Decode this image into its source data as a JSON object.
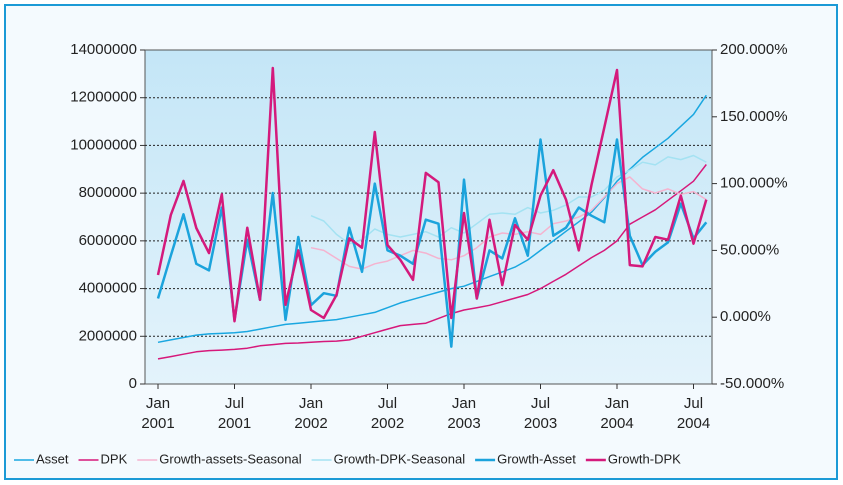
{
  "chart_data": {
    "type": "line",
    "categories": [
      "Jan 2001",
      null,
      null,
      null,
      null,
      null,
      "Jul 2001",
      null,
      null,
      null,
      null,
      null,
      "Jan 2002",
      null,
      null,
      null,
      null,
      null,
      "Jul 2002",
      null,
      null,
      null,
      null,
      null,
      "Jan 2003",
      null,
      null,
      null,
      null,
      null,
      "Jul 2003",
      null,
      null,
      null,
      null,
      null,
      "Jan 2004",
      null,
      null,
      null,
      null,
      null,
      "Jul 2004",
      null
    ],
    "ylim": [
      0,
      14000000
    ],
    "yticks": [
      0,
      2000000,
      4000000,
      6000000,
      8000000,
      10000000,
      12000000,
      14000000
    ],
    "y2lim": [
      -50,
      200
    ],
    "y2ticks": [
      {
        "value": -50,
        "label": "-50.000%"
      },
      {
        "value": 0,
        "label": "0.000%"
      },
      {
        "value": 50,
        "label": "50.000%"
      },
      {
        "value": 100,
        "label": "100.000%"
      },
      {
        "value": 150,
        "label": "150.000%"
      },
      {
        "value": 200,
        "label": "200.000%"
      }
    ],
    "grid": true,
    "series": [
      {
        "name": "Asset",
        "color": "#1aa7e0",
        "line_width": 1.5,
        "values": [
          1750000,
          1850000,
          1950000,
          2050000,
          2100000,
          2120000,
          2150000,
          2200000,
          2300000,
          2400000,
          2500000,
          2550000,
          2600000,
          2650000,
          2700000,
          2800000,
          2900000,
          3000000,
          3200000,
          3400000,
          3550000,
          3700000,
          3850000,
          4000000,
          4100000,
          4300000,
          4500000,
          4700000,
          4900000,
          5200000,
          5600000,
          6000000,
          6400000,
          6800000,
          7200000,
          7800000,
          8500000,
          9000000,
          9500000,
          9900000,
          10300000,
          10800000,
          11300000,
          12100000
        ]
      },
      {
        "name": "DPK",
        "color": "#d6187a",
        "line_width": 1.5,
        "values": [
          1050000,
          1150000,
          1250000,
          1350000,
          1400000,
          1420000,
          1450000,
          1500000,
          1600000,
          1650000,
          1700000,
          1720000,
          1750000,
          1780000,
          1800000,
          1850000,
          2000000,
          2150000,
          2300000,
          2450000,
          2500000,
          2550000,
          2750000,
          2950000,
          3100000,
          3200000,
          3300000,
          3450000,
          3600000,
          3750000,
          4000000,
          4300000,
          4600000,
          4950000,
          5300000,
          5600000,
          6000000,
          6700000,
          7000000,
          7300000,
          7700000,
          8100000,
          8500000,
          9200000
        ]
      },
      {
        "name": "Growth-assets-Seasonal",
        "color": "#f5b3cf",
        "line_width": 1.5,
        "axis": "y2",
        "values": [
          null,
          null,
          null,
          null,
          null,
          null,
          null,
          null,
          null,
          null,
          null,
          null,
          52,
          50,
          44,
          38,
          36,
          40,
          42,
          46,
          50,
          48,
          44,
          43,
          46,
          52,
          60,
          63,
          62,
          64,
          62,
          70,
          72,
          75,
          80,
          90,
          100,
          105,
          96,
          93,
          96,
          92,
          94,
          88
        ]
      },
      {
        "name": "Growth-DPK-Seasonal",
        "color": "#a4e2f2",
        "line_width": 1.5,
        "axis": "y2",
        "values": [
          null,
          null,
          null,
          null,
          null,
          null,
          null,
          null,
          null,
          null,
          null,
          null,
          76,
          72,
          62,
          55,
          58,
          66,
          62,
          60,
          62,
          64,
          60,
          67,
          63,
          70,
          77,
          78,
          77,
          82,
          78,
          80,
          84,
          90,
          90,
          95,
          105,
          110,
          116,
          114,
          120,
          118,
          121,
          116
        ]
      },
      {
        "name": "Growth-Asset",
        "color": "#1ba3dc",
        "line_width": 2.5,
        "axis": "y2",
        "values": [
          14,
          46,
          77,
          40,
          35,
          82,
          -2,
          58,
          13,
          93,
          -2,
          60,
          9,
          18,
          16,
          67,
          34,
          100,
          50,
          46,
          40,
          73,
          70,
          -22,
          103,
          14,
          50,
          44,
          74,
          46,
          133,
          61,
          67,
          82,
          76,
          71,
          133,
          61,
          39,
          49,
          56,
          85,
          59,
          71
        ]
      },
      {
        "name": "Growth-DPK",
        "color": "#d41a7c",
        "line_width": 2.5,
        "axis": "y2",
        "values": [
          31.6,
          76.5,
          102,
          66.8,
          48,
          92,
          -3,
          67,
          13,
          186.5,
          9.3,
          50,
          5.4,
          -0.6,
          16.6,
          59,
          52,
          138.6,
          54,
          43,
          28,
          108,
          101,
          -0.6,
          78,
          14,
          73,
          24,
          69,
          58,
          91,
          110,
          88,
          50,
          99,
          142,
          185,
          39,
          38,
          60,
          58,
          91,
          55,
          88
        ]
      }
    ]
  }
}
